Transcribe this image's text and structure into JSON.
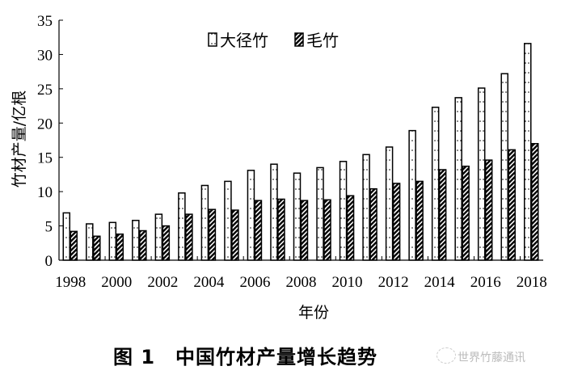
{
  "chart_data": {
    "type": "bar",
    "categories": [
      "1998",
      "1999",
      "2000",
      "2001",
      "2002",
      "2003",
      "2004",
      "2005",
      "2006",
      "2007",
      "2008",
      "2009",
      "2010",
      "2011",
      "2012",
      "2013",
      "2014",
      "2015",
      "2016",
      "2017",
      "2018"
    ],
    "x_tick_labels": [
      "1998",
      "2000",
      "2002",
      "2004",
      "2006",
      "2008",
      "2010",
      "2012",
      "2014",
      "2016",
      "2018"
    ],
    "series": [
      {
        "name": "大径竹",
        "pattern": "dotted-white",
        "values": [
          6.9,
          5.3,
          5.5,
          5.8,
          6.7,
          9.8,
          10.9,
          11.5,
          13.1,
          14.0,
          12.7,
          13.5,
          14.4,
          15.4,
          16.5,
          18.9,
          22.3,
          23.7,
          25.1,
          27.2,
          31.6
        ]
      },
      {
        "name": "毛竹",
        "pattern": "diagonal-hatch",
        "values": [
          4.2,
          3.5,
          3.8,
          4.3,
          5.0,
          6.7,
          7.4,
          7.3,
          8.7,
          8.9,
          8.7,
          8.8,
          9.4,
          10.4,
          11.2,
          11.5,
          13.2,
          13.7,
          14.6,
          16.1,
          17.0
        ]
      }
    ],
    "xlabel": "年份",
    "ylabel": "竹材产量/亿根",
    "ylim": [
      0,
      35
    ],
    "yticks": [
      0,
      5,
      10,
      15,
      20,
      25,
      30,
      35
    ],
    "grid": false,
    "legend_position": "top-center"
  },
  "caption": "图 1　中国竹材产量增长趋势",
  "watermark": "世界竹藤通讯"
}
